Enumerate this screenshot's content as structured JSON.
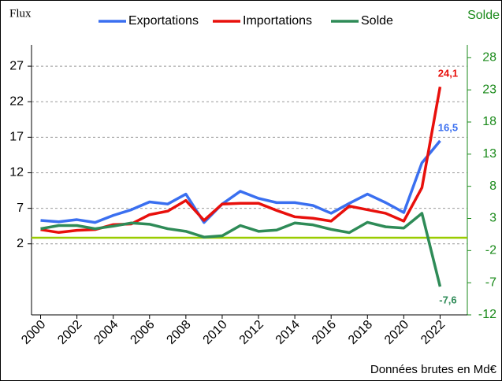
{
  "chart_data": {
    "type": "line",
    "y_label": "Flux",
    "y2_label": "Solde",
    "note": "Données brutes en Md€",
    "x": [
      2000,
      2001,
      2002,
      2003,
      2004,
      2005,
      2006,
      2007,
      2008,
      2009,
      2010,
      2011,
      2012,
      2013,
      2014,
      2015,
      2016,
      2017,
      2018,
      2019,
      2020,
      2021,
      2022
    ],
    "xlim": [
      1999.5,
      2023.5
    ],
    "xticks": [
      2000,
      2002,
      2004,
      2006,
      2008,
      2010,
      2012,
      2014,
      2016,
      2018,
      2020,
      2022
    ],
    "ylim": [
      -8,
      30
    ],
    "yticks": [
      2,
      7,
      12,
      17,
      22,
      27
    ],
    "y2lim": [
      -12,
      30
    ],
    "y2ticks": [
      28,
      23,
      18,
      13,
      8,
      3,
      -2,
      -7,
      -12
    ],
    "grid": true,
    "legend": "top",
    "reference_line": {
      "value": 0,
      "axis": "y2",
      "color": "#99cc00"
    },
    "series": [
      {
        "name": "Exportations",
        "color": "#3a6ff0",
        "values": [
          5.3,
          5.1,
          5.4,
          5.0,
          6.0,
          6.8,
          7.9,
          7.6,
          9.0,
          5.0,
          7.6,
          9.4,
          8.4,
          7.8,
          7.8,
          7.4,
          6.3,
          7.7,
          9.0,
          7.8,
          6.4,
          13.4,
          16.5
        ],
        "value_labels": [
          null,
          null,
          null,
          null,
          null,
          null,
          null,
          null,
          null,
          null,
          null,
          null,
          null,
          null,
          null,
          null,
          null,
          null,
          null,
          null,
          null,
          null,
          "16,5"
        ]
      },
      {
        "name": "Importations",
        "color": "#e8100c",
        "values": [
          4.0,
          3.6,
          3.9,
          4.0,
          4.7,
          4.8,
          6.1,
          6.6,
          8.1,
          5.3,
          7.6,
          7.7,
          7.7,
          6.7,
          5.8,
          5.6,
          5.2,
          7.3,
          6.8,
          6.3,
          5.2,
          9.9,
          24.1
        ],
        "value_labels": [
          null,
          null,
          null,
          null,
          null,
          null,
          null,
          null,
          null,
          null,
          null,
          null,
          null,
          null,
          null,
          null,
          null,
          null,
          null,
          null,
          null,
          null,
          "24,1"
        ]
      },
      {
        "name": "Solde",
        "color": "#2e8b57",
        "axis": "y2",
        "values": [
          1.4,
          1.9,
          1.9,
          1.4,
          1.8,
          2.3,
          2.1,
          1.4,
          1.0,
          0.1,
          0.3,
          1.9,
          1.0,
          1.2,
          2.3,
          2.0,
          1.3,
          0.8,
          2.4,
          1.7,
          1.5,
          3.8,
          -7.6
        ],
        "value_labels": [
          null,
          null,
          null,
          null,
          null,
          null,
          null,
          null,
          null,
          null,
          null,
          null,
          null,
          null,
          null,
          null,
          null,
          null,
          null,
          null,
          null,
          null,
          "-7,6"
        ]
      }
    ]
  }
}
